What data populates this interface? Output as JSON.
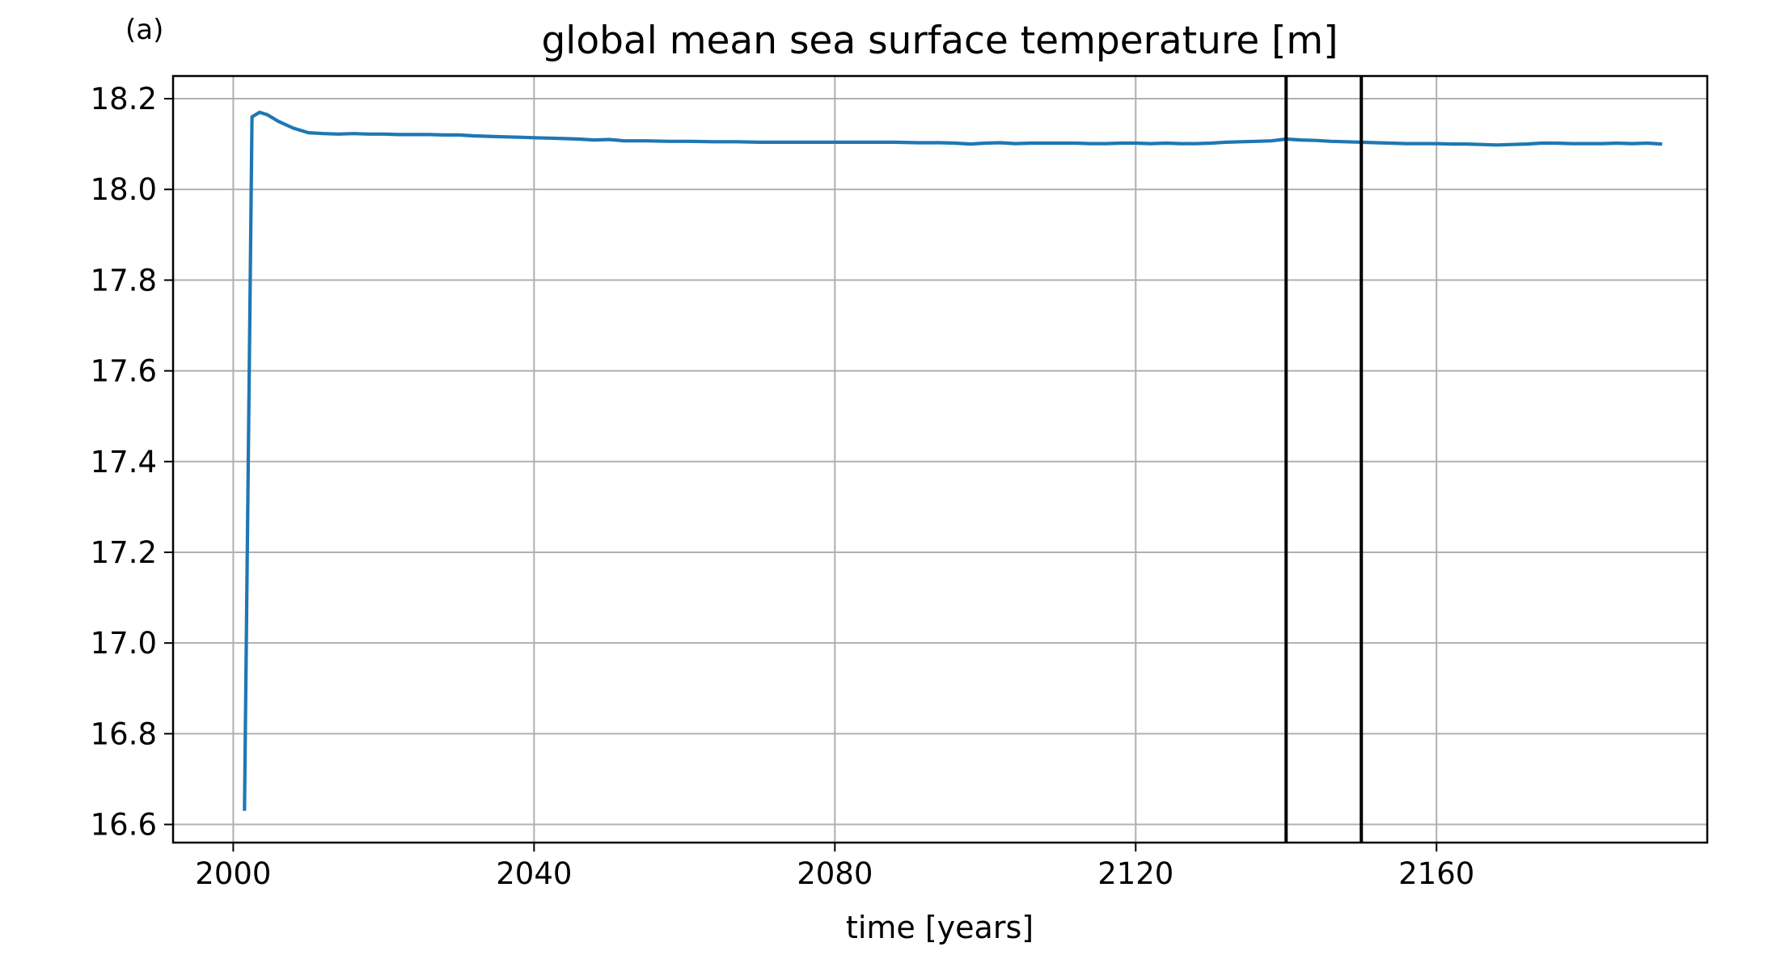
{
  "panel_label": "(a)",
  "colors": {
    "series": "#1f77b4",
    "vline": "#000000",
    "grid": "#b0b0b0",
    "frame": "#000000"
  },
  "chart_data": {
    "type": "line",
    "title": "global mean sea surface temperature [m]",
    "xlabel": "time [years]",
    "ylabel": "",
    "xlim": [
      1992,
      2196
    ],
    "ylim": [
      16.56,
      18.25
    ],
    "xticks": [
      2000,
      2040,
      2080,
      2120,
      2160
    ],
    "xtick_labels": [
      "2000",
      "2040",
      "2080",
      "2120",
      "2160"
    ],
    "yticks": [
      16.6,
      16.8,
      17.0,
      17.2,
      17.4,
      17.6,
      17.8,
      18.0,
      18.2
    ],
    "ytick_labels": [
      "16.6",
      "16.8",
      "17.0",
      "17.2",
      "17.4",
      "17.6",
      "17.8",
      "18.0",
      "18.2"
    ],
    "grid": true,
    "vertical_lines": [
      2140,
      2150
    ],
    "series": [
      {
        "x": [
          2001.5,
          2002.5,
          2003.5,
          2004.5,
          2006,
          2008,
          2010,
          2012,
          2014,
          2016,
          2018,
          2020,
          2022,
          2024,
          2026,
          2028,
          2030,
          2032,
          2034,
          2036,
          2038,
          2040,
          2042,
          2044,
          2046,
          2048,
          2050,
          2052,
          2055,
          2058,
          2061,
          2064,
          2067,
          2070,
          2073,
          2076,
          2079,
          2082,
          2085,
          2088,
          2091,
          2094,
          2096,
          2098,
          2100,
          2102,
          2104,
          2106,
          2108,
          2110,
          2112,
          2114,
          2116,
          2118,
          2120,
          2122,
          2124,
          2126,
          2128,
          2130,
          2132,
          2134,
          2136,
          2138,
          2140,
          2142,
          2144,
          2146,
          2148,
          2150,
          2152,
          2154,
          2156,
          2158,
          2160,
          2162,
          2164,
          2166,
          2168,
          2170,
          2172,
          2174,
          2176,
          2178,
          2180,
          2182,
          2184,
          2186,
          2188,
          2190
        ],
        "y": [
          16.63,
          18.16,
          18.17,
          18.165,
          18.15,
          18.135,
          18.125,
          18.123,
          18.122,
          18.123,
          18.122,
          18.122,
          18.121,
          18.121,
          18.121,
          18.12,
          18.12,
          18.118,
          18.117,
          18.116,
          18.115,
          18.114,
          18.113,
          18.112,
          18.111,
          18.109,
          18.11,
          18.107,
          18.107,
          18.106,
          18.106,
          18.105,
          18.105,
          18.104,
          18.104,
          18.104,
          18.104,
          18.104,
          18.104,
          18.104,
          18.103,
          18.103,
          18.102,
          18.1,
          18.102,
          18.103,
          18.101,
          18.102,
          18.102,
          18.102,
          18.102,
          18.101,
          18.101,
          18.102,
          18.102,
          18.101,
          18.102,
          18.101,
          18.101,
          18.102,
          18.104,
          18.105,
          18.106,
          18.107,
          18.111,
          18.109,
          18.108,
          18.106,
          18.105,
          18.104,
          18.103,
          18.102,
          18.101,
          18.101,
          18.101,
          18.1,
          18.1,
          18.099,
          18.098,
          18.099,
          18.1,
          18.102,
          18.102,
          18.101,
          18.101,
          18.101,
          18.102,
          18.101,
          18.102,
          18.1
        ]
      }
    ]
  }
}
